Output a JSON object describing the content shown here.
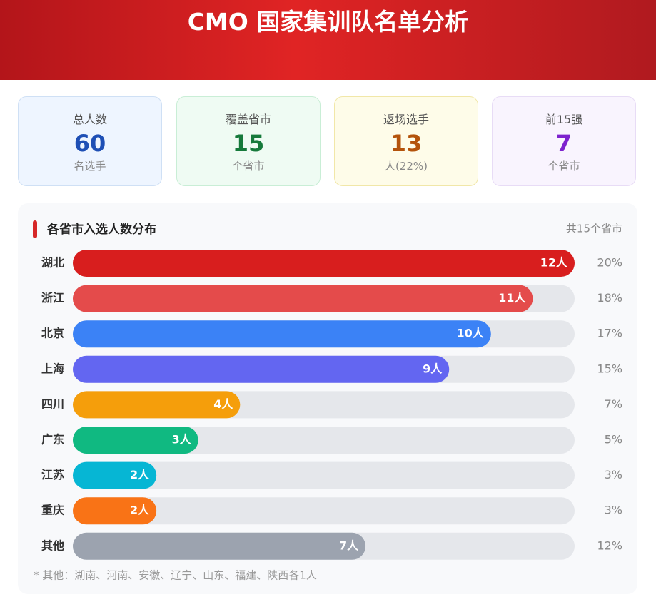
{
  "header": {
    "title": "CMO 国家集训队名单分析"
  },
  "stats": [
    {
      "label": "总人数",
      "value": "60",
      "unit": "名选手"
    },
    {
      "label": "覆盖省市",
      "value": "15",
      "unit": "个省市"
    },
    {
      "label": "返场选手",
      "value": "13",
      "unit": "人(22%)"
    },
    {
      "label": "前15强",
      "value": "7",
      "unit": "个省市"
    }
  ],
  "chart_data": {
    "type": "bar",
    "orientation": "horizontal",
    "title": "各省市入选人数分布",
    "note": "共15个省市",
    "categories": [
      "湖北",
      "浙江",
      "北京",
      "上海",
      "四川",
      "广东",
      "江苏",
      "重庆",
      "其他"
    ],
    "values": [
      12,
      11,
      10,
      9,
      4,
      3,
      2,
      2,
      7
    ],
    "value_labels": [
      "12人",
      "11人",
      "10人",
      "9人",
      "4人",
      "3人",
      "2人",
      "2人",
      "7人"
    ],
    "share_labels": [
      "20%",
      "18%",
      "17%",
      "15%",
      "7%",
      "5%",
      "3%",
      "3%",
      "12%"
    ],
    "colors": [
      "#d81e1e",
      "#e44b4b",
      "#3b82f6",
      "#6366f1",
      "#f59e0b",
      "#10b981",
      "#06b6d4",
      "#f97316",
      "#9ca3af"
    ],
    "xlim": [
      0,
      12
    ],
    "footnote": "* 其他：湖南、河南、安徽、辽宁、山东、福建、陕西各1人"
  }
}
